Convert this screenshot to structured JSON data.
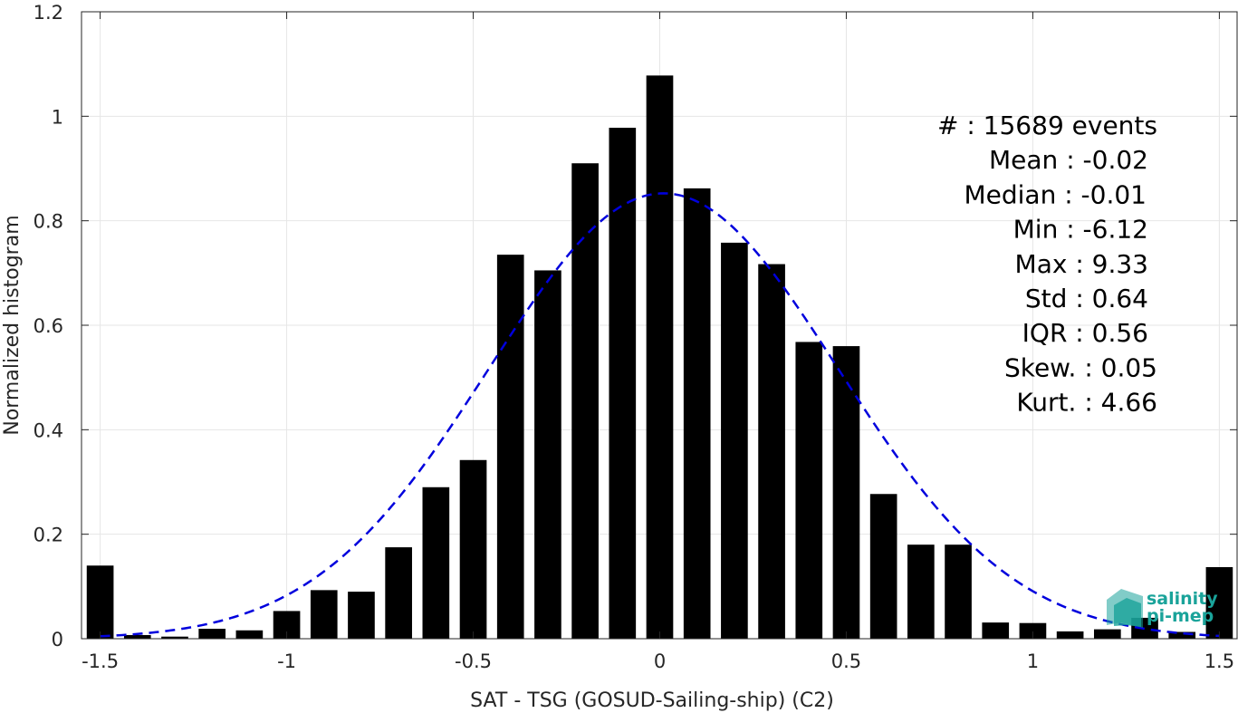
{
  "chart_data": {
    "type": "bar",
    "xlabel": "SAT - TSG (GOSUD-Sailing-ship) (C2)",
    "ylabel": "Normalized histogram",
    "xlim": [
      -1.55,
      1.55
    ],
    "ylim": [
      0,
      1.2
    ],
    "xticks": [
      -1.5,
      -1,
      -0.5,
      0,
      0.5,
      1,
      1.5
    ],
    "xtick_labels": [
      "-1.5",
      "-1",
      "-0.5",
      "0",
      "0.5",
      "1",
      "1.5"
    ],
    "yticks": [
      0,
      0.2,
      0.4,
      0.6,
      0.8,
      1,
      1.2
    ],
    "ytick_labels": [
      "0",
      "0.2",
      "0.4",
      "0.6",
      "0.8",
      "1",
      "1.2"
    ],
    "grid": true,
    "bar_color": "#000000",
    "bin_width": 0.1,
    "x": [
      -1.5,
      -1.4,
      -1.3,
      -1.2,
      -1.1,
      -1.0,
      -0.9,
      -0.8,
      -0.7,
      -0.6,
      -0.5,
      -0.4,
      -0.3,
      -0.2,
      -0.1,
      0.0,
      0.1,
      0.2,
      0.3,
      0.4,
      0.5,
      0.6,
      0.7,
      0.8,
      0.9,
      1.0,
      1.1,
      1.2,
      1.3,
      1.4,
      1.5
    ],
    "values": [
      0.14,
      0.007,
      0.004,
      0.019,
      0.016,
      0.053,
      0.093,
      0.09,
      0.175,
      0.29,
      0.342,
      0.735,
      0.705,
      0.91,
      0.978,
      1.078,
      0.862,
      0.758,
      0.717,
      0.568,
      0.56,
      0.277,
      0.18,
      0.18,
      0.031,
      0.03,
      0.014,
      0.018,
      0.04,
      0.013,
      0.137
    ],
    "fit_curve": {
      "style": "dashed",
      "color": "#0000dd",
      "distribution": "normal",
      "mean": 0.01,
      "std": 0.468
    },
    "stats": [
      {
        "label": "#  : 15689 events"
      },
      {
        "label": "Mean : -0.02"
      },
      {
        "label": "Median : -0.01"
      },
      {
        "label": "Min : -6.12"
      },
      {
        "label": "Max : 9.33"
      },
      {
        "label": "Std : 0.64"
      },
      {
        "label": "IQR : 0.56"
      },
      {
        "label": "Skew. : 0.05"
      },
      {
        "label": "Kurt. : 4.66"
      }
    ]
  },
  "logo": {
    "line1": "salinity",
    "line2": "pi-mep",
    "color": "#1aa39a"
  }
}
